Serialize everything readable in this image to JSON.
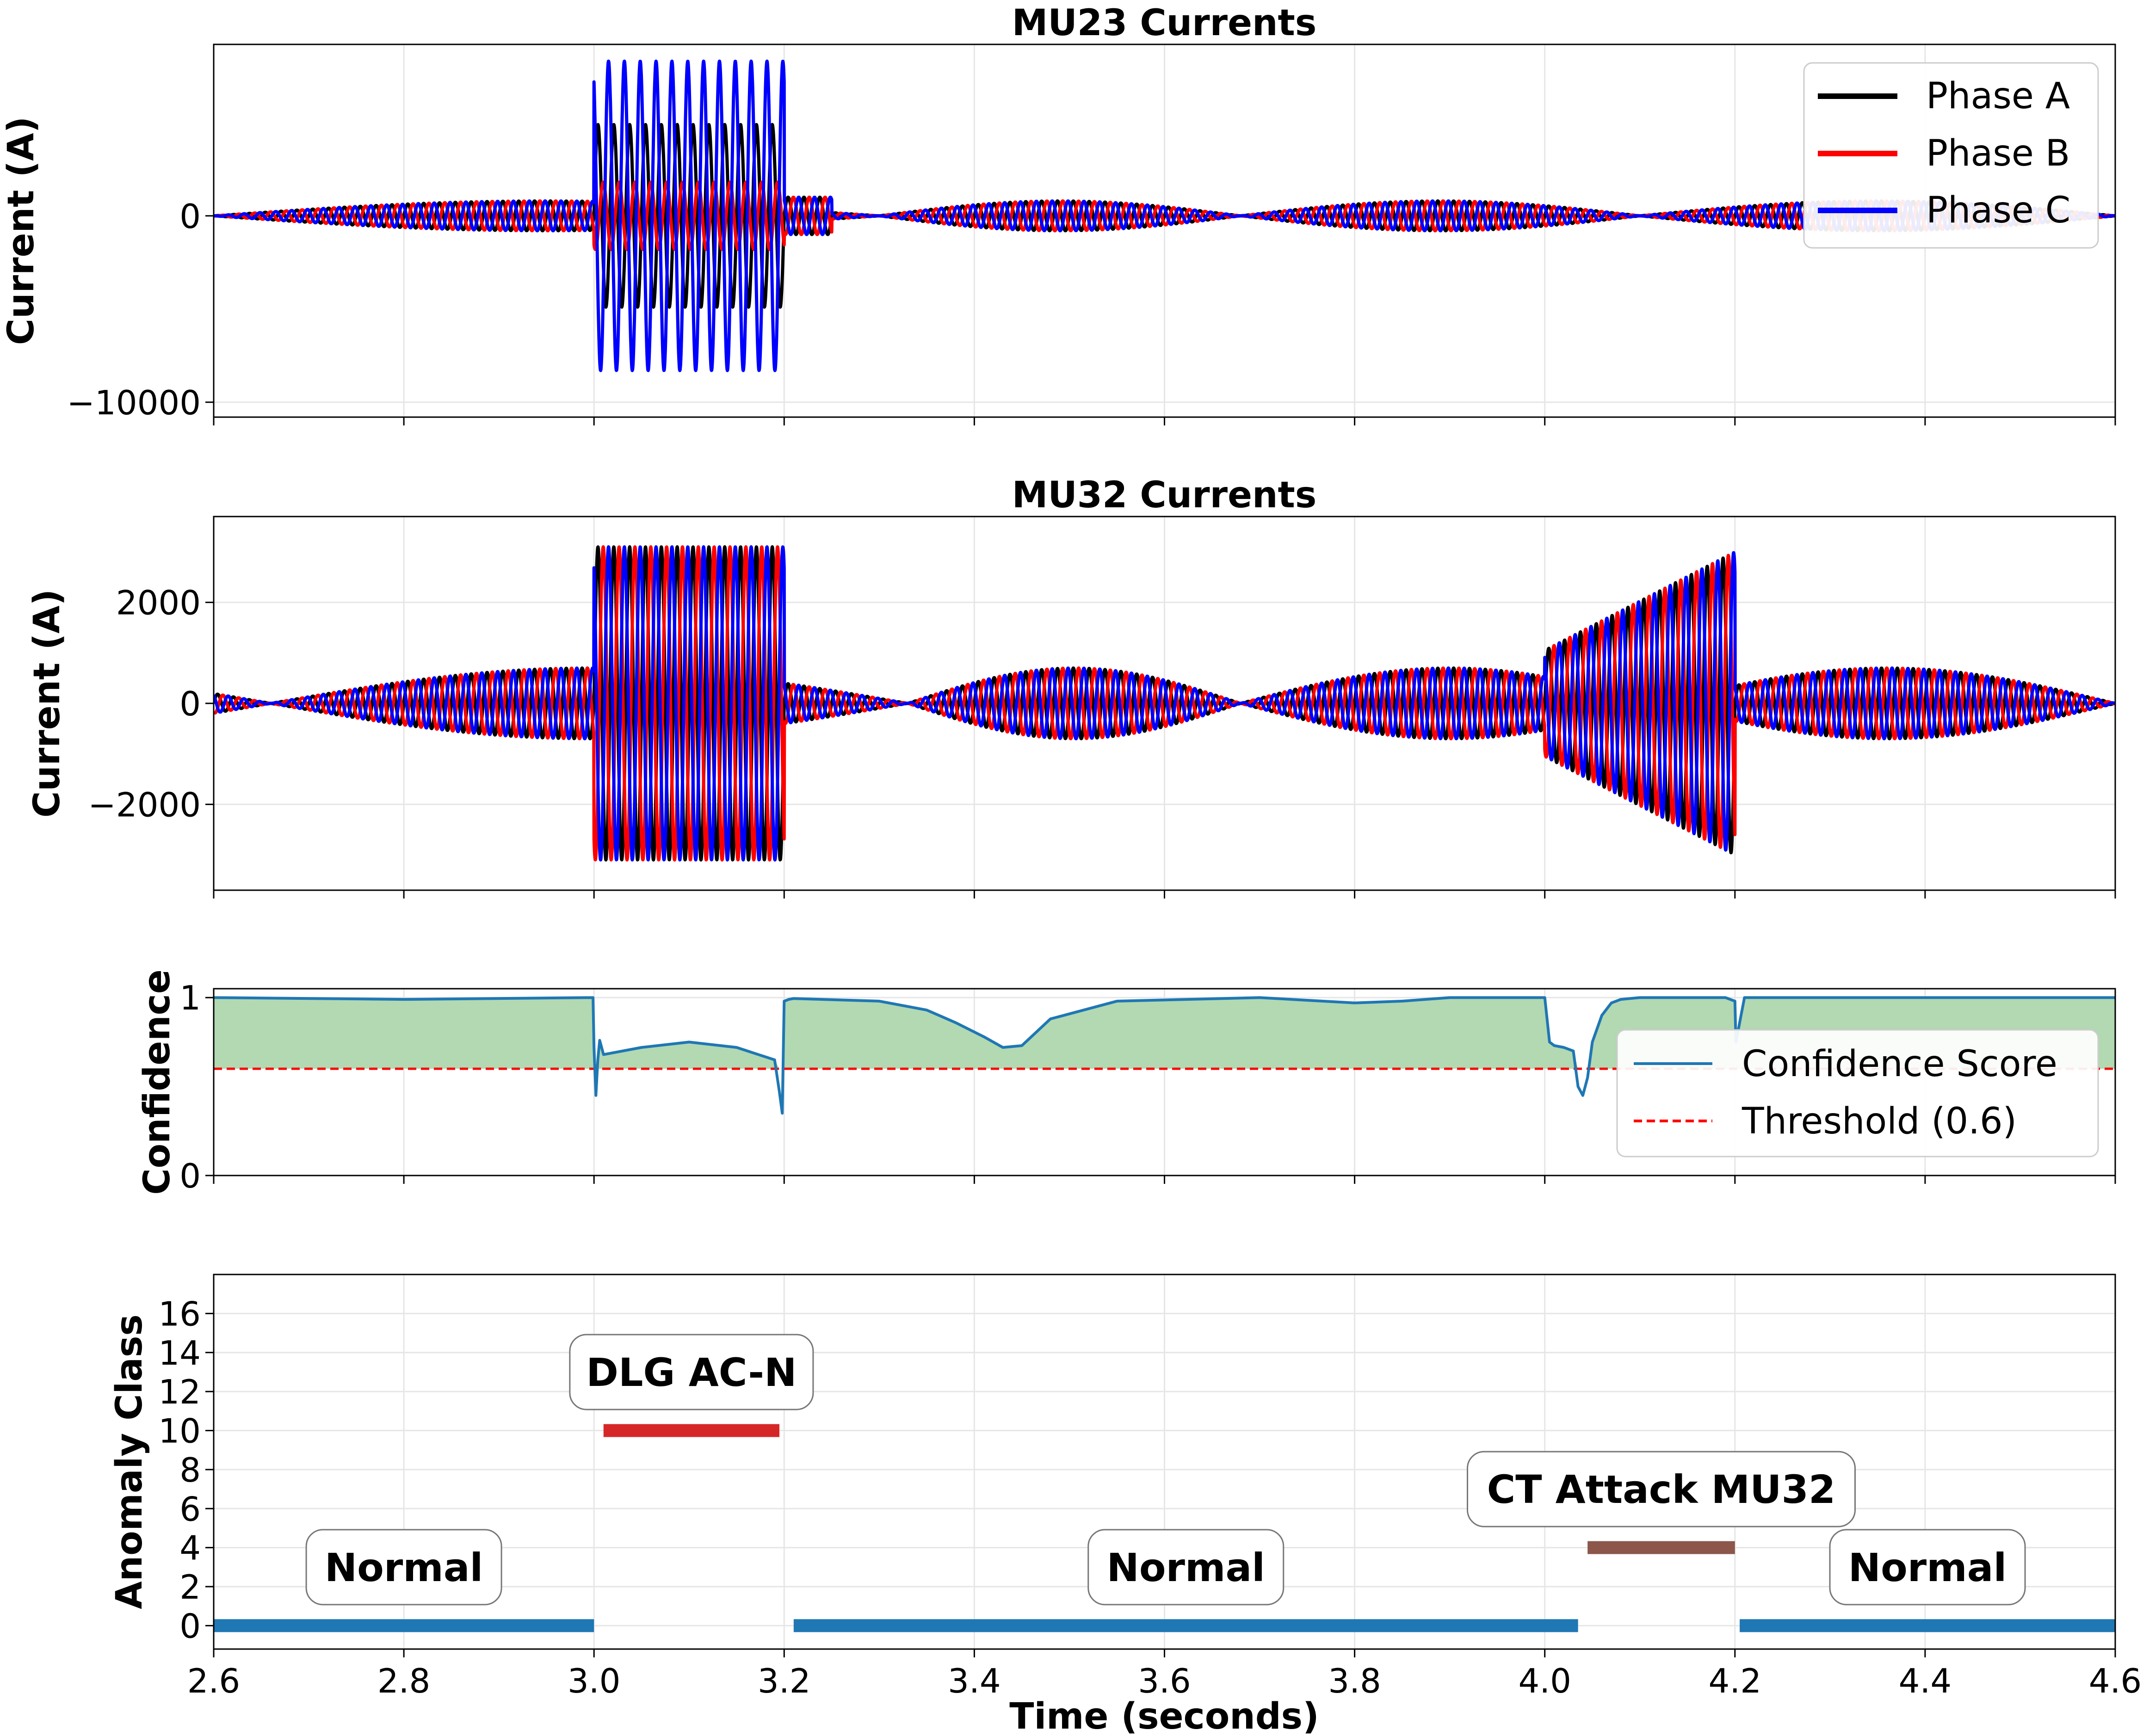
{
  "chart_data": [
    {
      "id": "mu23",
      "type": "line",
      "title": "MU23 Currents",
      "ylabel": "Current (A)",
      "xlabel": "",
      "xlim": [
        2.6,
        4.6
      ],
      "ylim": [
        -10800,
        9200
      ],
      "yticks": [
        0,
        -10000
      ],
      "ytick_labels": [
        "0",
        "−10000"
      ],
      "grid": true,
      "legend": {
        "placement": "top-right",
        "entries": [
          "Phase A",
          "Phase B",
          "Phase C"
        ]
      },
      "series": [
        {
          "name": "Phase A",
          "color": "#000000",
          "phase_deg": 0
        },
        {
          "name": "Phase B",
          "color": "#ff0000",
          "phase_deg": -120
        },
        {
          "name": "Phase C",
          "color": "#0000ff",
          "phase_deg": 120
        }
      ],
      "signal": {
        "frequency_hz": 60,
        "normal_envelope_amplitude": 800,
        "envelope_nodes": [
          2.6,
          3.3,
          3.68,
          4.1,
          4.6
        ],
        "segments": [
          {
            "start": 3.0,
            "end": 3.2,
            "amplitudes": {
              "Phase A": 4900,
              "Phase B": 1800,
              "Phase C": 8300
            },
            "growth": 0
          },
          {
            "start": 3.2,
            "end": 3.25,
            "amplitudes": {
              "Phase A": 1000,
              "Phase B": 1000,
              "Phase C": 1000
            },
            "growth": 0
          }
        ]
      }
    },
    {
      "id": "mu32",
      "type": "line",
      "title": "MU32 Currents",
      "ylabel": "Current (A)",
      "xlabel": "",
      "xlim": [
        2.6,
        4.6
      ],
      "ylim": [
        -3700,
        3700
      ],
      "yticks": [
        2000,
        0,
        -2000
      ],
      "ytick_labels": [
        "2000",
        "0",
        "−2000"
      ],
      "grid": true,
      "series": [
        {
          "name": "Phase A",
          "color": "#000000",
          "phase_deg": 0
        },
        {
          "name": "Phase B",
          "color": "#ff0000",
          "phase_deg": -120
        },
        {
          "name": "Phase C",
          "color": "#0000ff",
          "phase_deg": 120
        }
      ],
      "signal": {
        "frequency_hz": 60,
        "normal_envelope_amplitude": 700,
        "envelope_nodes": [
          2.66,
          3.33,
          3.68,
          4.12,
          4.6
        ],
        "segments": [
          {
            "start": 3.0,
            "end": 3.2,
            "amplitudes": {
              "Phase A": 3100,
              "Phase B": 3100,
              "Phase C": 3100
            },
            "growth": 0
          },
          {
            "start": 4.0,
            "end": 4.2,
            "amplitudes": {
              "Phase A": 3000,
              "Phase B": 3000,
              "Phase C": 3000
            },
            "growth": 1
          }
        ]
      }
    },
    {
      "id": "confidence",
      "type": "area",
      "title": "",
      "ylabel": "Confidence",
      "xlabel": "",
      "xlim": [
        2.6,
        4.6
      ],
      "ylim": [
        0,
        1.05
      ],
      "yticks": [
        0,
        1
      ],
      "ytick_labels": [
        "0",
        "1"
      ],
      "grid": true,
      "threshold": 0.6,
      "fill_color": "#b2d9b2",
      "line_color": "#1f77b4",
      "threshold_color": "#ff0000",
      "legend": {
        "placement": "right",
        "entries": [
          "Confidence Score",
          "Threshold (0.6)"
        ]
      },
      "x": [
        2.6,
        2.8,
        2.999,
        3.0,
        3.002,
        3.004,
        3.006,
        3.01,
        3.05,
        3.1,
        3.15,
        3.19,
        3.195,
        3.198,
        3.2,
        3.205,
        3.21,
        3.3,
        3.35,
        3.38,
        3.41,
        3.43,
        3.45,
        3.48,
        3.55,
        3.7,
        3.8,
        3.85,
        3.9,
        4.0,
        4.005,
        4.01,
        4.02,
        4.03,
        4.035,
        4.04,
        4.045,
        4.05,
        4.06,
        4.07,
        4.08,
        4.1,
        4.15,
        4.19,
        4.2,
        4.201,
        4.21,
        4.22,
        4.4,
        4.6
      ],
      "values": [
        1.0,
        0.99,
        1.0,
        0.72,
        0.45,
        0.65,
        0.76,
        0.68,
        0.72,
        0.75,
        0.72,
        0.65,
        0.47,
        0.35,
        0.98,
        0.99,
        0.995,
        0.98,
        0.93,
        0.86,
        0.78,
        0.72,
        0.73,
        0.88,
        0.98,
        1.0,
        0.97,
        0.98,
        1.0,
        1.0,
        0.75,
        0.73,
        0.72,
        0.7,
        0.5,
        0.45,
        0.55,
        0.75,
        0.9,
        0.97,
        0.99,
        1.0,
        1.0,
        1.0,
        0.98,
        0.75,
        1.0,
        1.0,
        1.0,
        1.0
      ]
    },
    {
      "id": "anomaly",
      "type": "bar",
      "title": "",
      "ylabel": "Anomaly Class",
      "xlabel": "Time (seconds)",
      "xlim": [
        2.6,
        4.6
      ],
      "ylim": [
        -1.2,
        18
      ],
      "yticks": [
        0,
        2,
        4,
        6,
        8,
        10,
        12,
        14,
        16
      ],
      "ytick_labels": [
        "0",
        "2",
        "4",
        "6",
        "8",
        "10",
        "12",
        "14",
        "16"
      ],
      "xticks": [
        2.6,
        2.8,
        3.0,
        3.2,
        3.4,
        3.6,
        3.8,
        4.0,
        4.2,
        4.4,
        4.6
      ],
      "xtick_labels": [
        "2.6",
        "2.8",
        "3.0",
        "3.2",
        "3.4",
        "3.6",
        "3.8",
        "4.0",
        "4.2",
        "4.4",
        "4.6"
      ],
      "grid": true,
      "segments": [
        {
          "label": "Normal",
          "start": 2.6,
          "end": 3.0,
          "class": 0,
          "color": "#1f77b4",
          "label_y": 3.0
        },
        {
          "label": "DLG AC-N",
          "start": 3.01,
          "end": 3.195,
          "class": 10,
          "color": "#d62728",
          "label_y": 13.0
        },
        {
          "label": "Normal",
          "start": 3.21,
          "end": 4.035,
          "class": 0,
          "color": "#1f77b4",
          "label_y": 3.0
        },
        {
          "label": "CT Attack MU32",
          "start": 4.045,
          "end": 4.2,
          "class": 4,
          "color": "#8c564b",
          "label_y": 7.0
        },
        {
          "label": "Normal",
          "start": 4.205,
          "end": 4.6,
          "class": 0,
          "color": "#1f77b4",
          "label_y": 3.0
        }
      ]
    }
  ],
  "shared_xticks": [
    2.6,
    2.8,
    3.0,
    3.2,
    3.4,
    3.6,
    3.8,
    4.0,
    4.2,
    4.4,
    4.6
  ],
  "legend_mu23": [
    "Phase A",
    "Phase B",
    "Phase C"
  ],
  "legend_conf": [
    "Confidence Score",
    "Threshold (0.6)"
  ]
}
